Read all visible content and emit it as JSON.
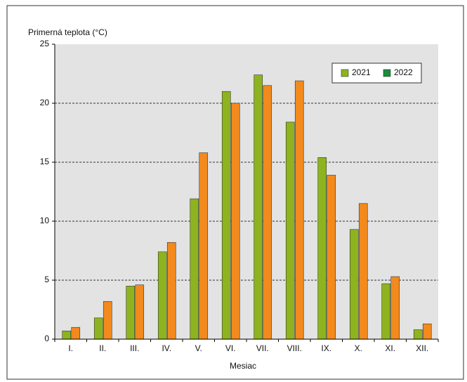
{
  "chart_data": {
    "type": "bar",
    "y_label": "Primerná teplota (°C)",
    "x_label": "Mesiac",
    "categories": [
      "I.",
      "II.",
      "III.",
      "IV.",
      "V.",
      "VI.",
      "VII.",
      "VIII.",
      "IX.",
      "X.",
      "XI.",
      "XII."
    ],
    "series": [
      {
        "name": "2021",
        "color": "#8db41e",
        "legend_color": "#8db41e",
        "values": [
          0.7,
          1.8,
          4.5,
          7.4,
          11.9,
          21.0,
          22.4,
          18.4,
          15.4,
          9.3,
          4.7,
          0.8
        ]
      },
      {
        "name": "2022",
        "color": "#f28a1e",
        "legend_color": "#1a8c3c",
        "values": [
          1.0,
          3.2,
          4.6,
          8.2,
          15.8,
          20.0,
          21.5,
          21.9,
          13.9,
          11.5,
          5.3,
          1.3
        ]
      }
    ],
    "ylim": [
      0,
      25
    ],
    "yticks": [
      0,
      5,
      10,
      15,
      20,
      25
    ],
    "grid": true,
    "legend": "top-right"
  }
}
